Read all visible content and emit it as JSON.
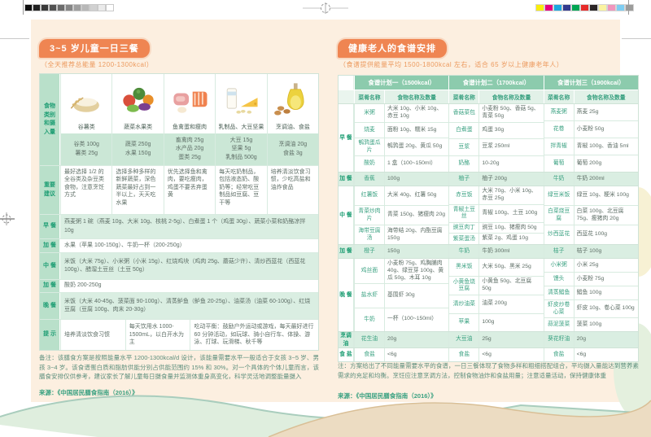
{
  "print_marks": {
    "grayscale": [
      "#0d0d0d",
      "#222222",
      "#3a3a3a",
      "#525252",
      "#6b6b6b",
      "#858585",
      "#9e9e9e",
      "#b8b8b8",
      "#d1d1d1",
      "#eaeaea",
      "#ffffff"
    ],
    "colors": [
      "#f9ed0c",
      "#e6007e",
      "#1da7e0",
      "#333a8e",
      "#00a553",
      "#e62b2a",
      "#2b2526",
      "#faf3a0",
      "#f096bd",
      "#7ecdf2",
      "#9c9c9b"
    ]
  },
  "accent_colors": {
    "badge_orange": "#ef8552",
    "table_green": "#8ccbad",
    "cream": "#fcefe0"
  },
  "left_page": {
    "title": "3~5 岁儿童一日三餐",
    "subtitle": "（全天推荐总能量 1200-1300kcal）",
    "row_headers": [
      "食物类别和摄入量",
      "重要建议",
      "早 餐",
      "加 餐",
      "中 餐",
      "加 餐",
      "晚 餐",
      "提 示"
    ],
    "food_groups": [
      {
        "name": "谷薯类",
        "icon": "grains-photo",
        "amounts": "谷类 100g\n薯类 25g",
        "advice": "最好选择 1/2 的全谷类及杂豆类食物，注意烹饪方式"
      },
      {
        "name": "蔬菜水果类",
        "icon": "vegetables-fruits-photo",
        "amounts": "蔬菜 250g\n水果 150g",
        "advice": "选择多种多样的新鲜蔬菜，深色蔬菜最好占到一半以上，天天吃水果"
      },
      {
        "name": "鱼禽蛋和瘦肉",
        "icon": "meat-fish-egg-photo",
        "amounts": "畜禽肉 25g\n水产品 20g\n蛋类 25g",
        "advice": "优先选择鱼和禽肉，要吃瘦肉，鸡蛋不要丢弃蛋黄"
      },
      {
        "name": "乳制品、大豆坚果",
        "icon": "dairy-soy-photo",
        "amounts": "大豆 15g\n坚果 5g\n乳制品 500g",
        "advice": "每天吃奶制品，包括液态奶、酸奶等；经常吃豆制品如豆腐、豆干等"
      },
      {
        "name": "烹调油、食盐",
        "icon": "oil-salt-photo",
        "amounts": "烹调油 20g\n食盐 3g",
        "advice": "培养清淡饮食习惯，少吃高盐和油炸食品"
      }
    ],
    "meals": {
      "breakfast": "燕麦粥 1 碗（燕麦 10g、大米 10g、核桃 2-5g）、白煮蛋 1 个（鸡蛋 30g）、蔬菜小菜和奶酪凉拌 10g",
      "snack1": "水果（苹果 100-150g）、牛奶一杯（200-250g）",
      "lunch": "米饭（大米 75g）、小米粥（小米 15g）、红烧鸡块（鸡肉 25g、蘑菇少许）、清炒西蓝花（西蓝花 100g）、醋溜土豆丝（土豆 50g）",
      "snack2": "酸奶 200-250g",
      "dinner": "米饭（大米 40-45g、菠菜面 90-100g）、清蒸鲈鱼（鲈鱼 20-25g）、油菜汤（油菜 60-100g）、红烧豆腐（豆腐 100g、肉末 20-30g）"
    },
    "tips": [
      "培养清淡饮食习惯",
      "每天饮用水 1000-1500mL，以白开水为主",
      "吃动平衡：鼓励户外运动或游戏，每天最好进行 60 分钟活动，如玩球、骑小自行车、体操、游泳、打球、玩滑梯、秋千等"
    ],
    "note": "备注：该膳食方案是按照能量水平 1200-1300kcal/d 设计，该能量需要水平一般适合于女孩 3~5 岁、男孩 3~4 岁。该食谱蛋白质和脂肪供能分别占供能范围约 15% 和 30%。对一个具体的个体儿童而言，该膳食安排仅供参考，建议家长了解儿童每日摄食量并监测体重身高变化，科学灵活地调整能量摄入",
    "source": "来源：《中国居民膳食指南（2016）》"
  },
  "right_page": {
    "title": "健康老人的食谱安排",
    "subtitle": "（食谱提供能量平均 1500-1800kcal 左右，适合 65 岁以上健康老年人）",
    "plan_headers": [
      "食谱计划一（1500kcal）",
      "食谱计划二（1700kcal）",
      "食谱计划三（1900kcal）"
    ],
    "column_headers": [
      "菜肴名称",
      "食物名称及数量"
    ],
    "sections": [
      {
        "label": "早 餐",
        "highlight": false,
        "plans": [
          [
            {
              "dish": "米粥",
              "food": "大米 10g、小米 10g、赤豆 10g"
            },
            {
              "dish": "烧麦",
              "food": "面粉 10g、糯米 15g"
            },
            {
              "dish": "鹌鹑蛋瓜片",
              "food": "鹌鹑蛋 20g、黄瓜 50g"
            },
            {
              "dish": "酸奶",
              "food": "1 盒（100~150ml）"
            }
          ],
          [
            {
              "dish": "香菇菜包",
              "food": "小麦粉 50g、香菇 5g、青菜 50g"
            },
            {
              "dish": "白煮蛋",
              "food": "鸡蛋 30g"
            },
            {
              "dish": "豆浆",
              "food": "豆浆 250ml"
            },
            {
              "dish": "奶酪",
              "food": "10-20g"
            }
          ],
          [
            {
              "dish": "燕麦粥",
              "food": "燕麦 25g"
            },
            {
              "dish": "花卷",
              "food": "小麦粉 50g"
            },
            {
              "dish": "拌青椒",
              "food": "青椒 100g、香油 5ml"
            },
            {
              "dish": "葡萄",
              "food": "葡萄 200g"
            }
          ]
        ]
      },
      {
        "label": "加 餐",
        "highlight": true,
        "plans": [
          [
            {
              "dish": "香蕉",
              "food": "100g"
            }
          ],
          [
            {
              "dish": "柚子",
              "food": "柚子 200g"
            }
          ],
          [
            {
              "dish": "牛奶",
              "food": "牛奶 200ml"
            }
          ]
        ]
      },
      {
        "label": "中 餐",
        "highlight": false,
        "plans": [
          [
            {
              "dish": "红薯饭",
              "food": "大米 40g、红薯 50g"
            },
            {
              "dish": "青菜炒肉片",
              "food": "青菜 150g、猪瘦肉 20g"
            },
            {
              "dish": "海带豆腐汤",
              "food": "海带结 20g、内酯豆腐 150g"
            }
          ],
          [
            {
              "dish": "赤豆饭",
              "food": "大米 70g、小米 10g、赤豆 25g"
            },
            {
              "dish": "青椒土豆丝",
              "food": "青椒 100g、土豆 100g"
            },
            {
              "dish": "豌豆肉丁",
              "food": "豌豆 10g、猪瘦肉 50g"
            },
            {
              "dish": "紫菜蛋汤",
              "food": "紫菜 2g、鸡蛋 10g"
            }
          ],
          [
            {
              "dish": "绿豆米饭",
              "food": "绿豆 10g、粳米 100g"
            },
            {
              "dish": "白菜烧豆腐",
              "food": "白菜 100g、北豆腐 75g、瘦猪肉 20g"
            },
            {
              "dish": "炒西蓝花",
              "food": "西蓝花 100g"
            }
          ]
        ]
      },
      {
        "label": "加 餐",
        "highlight": true,
        "plans": [
          [
            {
              "dish": "橙子",
              "food": "150g"
            }
          ],
          [
            {
              "dish": "牛奶",
              "food": "牛奶 300ml"
            }
          ],
          [
            {
              "dish": "桔子",
              "food": "桔子 100g"
            }
          ]
        ]
      },
      {
        "label": "晚 餐",
        "highlight": false,
        "plans": [
          [
            {
              "dish": "鸡丝面",
              "food": "小麦粉 75g、鸡胸脯肉 40g、绿豆芽 100g、黄瓜 50g、木耳 10g"
            },
            {
              "dish": "盐水虾",
              "food": "基围虾 30g"
            },
            {
              "dish": "牛奶",
              "food": "一杯（100~150ml）"
            }
          ],
          [
            {
              "dish": "黑米饭",
              "food": "大米 50g、黑米 25g"
            },
            {
              "dish": "小黄鱼烧豆腐",
              "food": "小黄鱼 50g、北豆腐 50g"
            },
            {
              "dish": "清炒油菜",
              "food": "油菜 200g"
            },
            {
              "dish": "苹果",
              "food": "100g"
            }
          ],
          [
            {
              "dish": "小米粥",
              "food": "小米 25g"
            },
            {
              "dish": "馒头",
              "food": "小麦粉 75g"
            },
            {
              "dish": "清蒸鲳鱼",
              "food": "鲳鱼 100g"
            },
            {
              "dish": "虾皮炒卷心菜",
              "food": "虾皮 10g、卷心菜 100g"
            },
            {
              "dish": "蒜泥菠菜",
              "food": "菠菜 100g"
            }
          ]
        ]
      },
      {
        "label": "烹调油",
        "highlight": true,
        "plans": [
          [
            {
              "dish": "花生油",
              "food": "20g"
            }
          ],
          [
            {
              "dish": "大豆油",
              "food": "25g"
            }
          ],
          [
            {
              "dish": "葵花籽油",
              "food": "20g"
            }
          ]
        ]
      },
      {
        "label": "食 盐",
        "highlight": false,
        "plans": [
          [
            {
              "dish": "食盐",
              "food": "<6g"
            }
          ],
          [
            {
              "dish": "食盐",
              "food": "<6g"
            }
          ],
          [
            {
              "dish": "食盐",
              "food": "<6g"
            }
          ]
        ]
      }
    ],
    "note": "注：方案给出了不同能量需要水平的食谱，一日三餐体现了食物多样和粗细搭配组合，平均摄入量能达到营养素需求的充足和均衡。烹饪应注意烹调方法，控制食物油炸和食盐用量；注意适量活动，保持健康体重",
    "source": "来源：《中国居民膳食指南（2016）》"
  }
}
